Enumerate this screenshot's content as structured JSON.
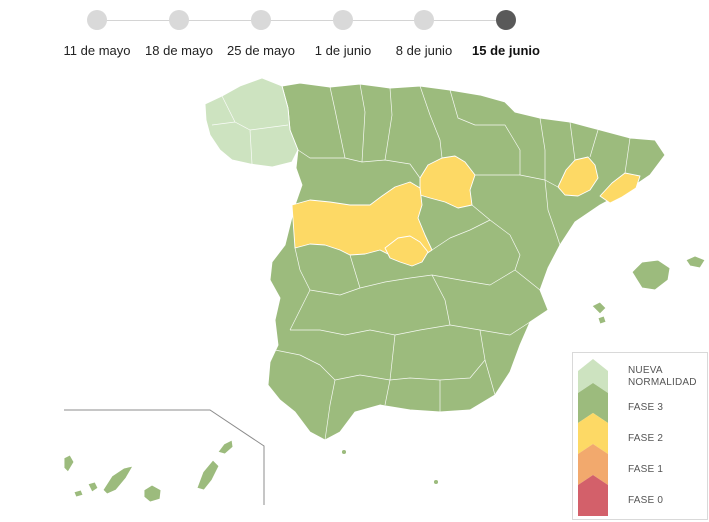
{
  "timeline": {
    "steps": [
      {
        "label": "11 de mayo",
        "active": false
      },
      {
        "label": "18 de mayo",
        "active": false
      },
      {
        "label": "25 de mayo",
        "active": false
      },
      {
        "label": "1 de junio",
        "active": false
      },
      {
        "label": "8 de junio",
        "active": false
      },
      {
        "label": "15 de junio",
        "active": true
      }
    ]
  },
  "legend": {
    "items": [
      {
        "label_line1": "NUEVA",
        "label_line2": "NORMALIDAD",
        "color": "#cde3c0"
      },
      {
        "label_line1": "FASE 3",
        "label_line2": "",
        "color": "#9cbb7d"
      },
      {
        "label_line1": "FASE 2",
        "label_line2": "",
        "color": "#fdd965"
      },
      {
        "label_line1": "FASE 1",
        "label_line2": "",
        "color": "#f2a96d"
      },
      {
        "label_line1": "FASE 0",
        "label_line2": "",
        "color": "#d3606a"
      }
    ]
  },
  "map": {
    "colors": {
      "nueva_normalidad": "#cde3c0",
      "fase_3": "#9cbb7d",
      "fase_2": "#fdd965"
    },
    "regions": [
      {
        "name": "Galicia",
        "phase": "NUEVA NORMALIDAD"
      },
      {
        "name": "Peninsula",
        "phase": "FASE 3"
      },
      {
        "name": "Islas Baleares",
        "phase": "FASE 3"
      },
      {
        "name": "Islas Canarias",
        "phase": "FASE 3"
      },
      {
        "name": "Ceuta",
        "phase": "FASE 3"
      },
      {
        "name": "Melilla",
        "phase": "FASE 3"
      },
      {
        "name": "Soria",
        "phase": "FASE 2"
      },
      {
        "name": "Castilla y León (oeste)",
        "phase": "FASE 2"
      },
      {
        "name": "Madrid",
        "phase": "FASE 2"
      },
      {
        "name": "Lleida",
        "phase": "FASE 2"
      },
      {
        "name": "Barcelona",
        "phase": "FASE 2"
      }
    ]
  }
}
